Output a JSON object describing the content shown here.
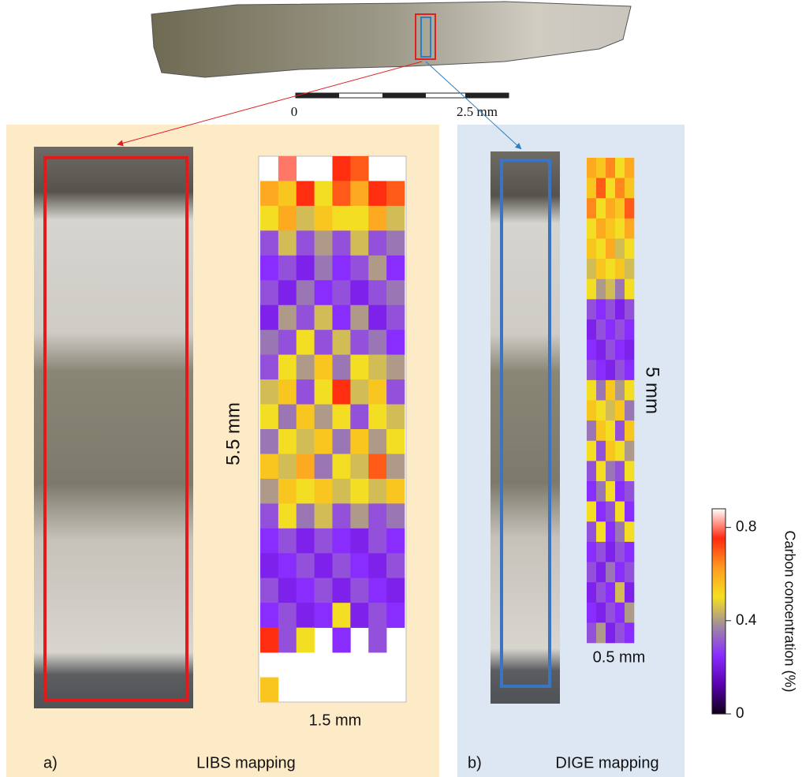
{
  "top_image": {
    "scale_start": "0",
    "scale_end": "2.5 mm"
  },
  "panel_a": {
    "label": "a)",
    "title": "LIBS mapping",
    "height_label": "5.5 mm",
    "width_label": "1.5 mm",
    "grid": [
      [
        null,
        0.8,
        null,
        null,
        0.75,
        0.7,
        null,
        null
      ],
      [
        0.6,
        0.55,
        0.75,
        0.5,
        0.7,
        0.6,
        0.75,
        0.7
      ],
      [
        0.5,
        0.6,
        0.45,
        0.55,
        0.5,
        0.5,
        0.6,
        0.45
      ],
      [
        0.3,
        0.45,
        0.3,
        0.4,
        0.3,
        0.45,
        0.3,
        0.35
      ],
      [
        0.25,
        0.3,
        0.22,
        0.35,
        0.25,
        0.3,
        0.4,
        0.25
      ],
      [
        0.3,
        0.22,
        0.35,
        0.25,
        0.3,
        0.22,
        0.3,
        0.35
      ],
      [
        0.22,
        0.4,
        0.3,
        0.45,
        0.25,
        0.4,
        0.22,
        0.3
      ],
      [
        0.35,
        0.3,
        0.5,
        0.3,
        0.45,
        0.3,
        0.35,
        0.25
      ],
      [
        0.3,
        0.5,
        0.4,
        0.55,
        0.35,
        0.5,
        0.45,
        0.4
      ],
      [
        0.45,
        0.55,
        0.3,
        0.5,
        0.75,
        0.45,
        0.55,
        0.3
      ],
      [
        0.5,
        0.35,
        0.55,
        0.4,
        0.5,
        0.3,
        0.5,
        0.45
      ],
      [
        0.35,
        0.5,
        0.45,
        0.55,
        0.35,
        0.55,
        0.4,
        0.5
      ],
      [
        0.55,
        0.45,
        0.6,
        0.35,
        0.5,
        0.45,
        0.7,
        0.4
      ],
      [
        0.4,
        0.55,
        0.5,
        0.55,
        0.45,
        0.5,
        0.45,
        0.55
      ],
      [
        0.3,
        0.5,
        0.35,
        0.45,
        0.3,
        0.4,
        0.3,
        0.35
      ],
      [
        0.25,
        0.3,
        0.22,
        0.3,
        0.25,
        0.22,
        0.3,
        0.25
      ],
      [
        0.22,
        0.25,
        0.3,
        0.22,
        0.3,
        0.25,
        0.22,
        0.3
      ],
      [
        0.3,
        0.22,
        0.25,
        0.3,
        0.22,
        0.3,
        0.25,
        0.22
      ],
      [
        0.25,
        0.3,
        0.22,
        0.25,
        0.5,
        0.22,
        0.3,
        0.25
      ],
      [
        0.75,
        0.3,
        0.5,
        null,
        0.25,
        null,
        0.3,
        null
      ],
      [
        null,
        null,
        null,
        null,
        null,
        null,
        null,
        null
      ],
      [
        0.55,
        null,
        null,
        null,
        null,
        null,
        null,
        null
      ]
    ]
  },
  "panel_b": {
    "label": "b)",
    "title": "DIGE mapping",
    "height_label": "5 mm",
    "width_label": "0.5 mm",
    "grid": [
      [
        0.6,
        0.55,
        0.65,
        0.5,
        0.6
      ],
      [
        0.55,
        0.7,
        0.5,
        0.65,
        0.55
      ],
      [
        0.65,
        0.5,
        0.6,
        0.55,
        0.7
      ],
      [
        0.5,
        0.6,
        0.55,
        0.5,
        0.6
      ],
      [
        0.55,
        0.5,
        0.6,
        0.45,
        0.5
      ],
      [
        0.45,
        0.55,
        0.5,
        0.55,
        0.45
      ],
      [
        0.5,
        0.4,
        0.45,
        0.35,
        0.5
      ],
      [
        0.3,
        0.25,
        0.3,
        0.22,
        0.3
      ],
      [
        0.22,
        0.3,
        0.25,
        0.3,
        0.25
      ],
      [
        0.25,
        0.22,
        0.3,
        0.25,
        0.22
      ],
      [
        0.3,
        0.25,
        0.22,
        0.3,
        0.25
      ],
      [
        0.5,
        0.35,
        0.55,
        0.4,
        0.5
      ],
      [
        0.55,
        0.5,
        0.45,
        0.55,
        0.35
      ],
      [
        0.35,
        0.55,
        0.5,
        0.3,
        0.55
      ],
      [
        0.5,
        0.3,
        0.55,
        0.5,
        0.4
      ],
      [
        0.3,
        0.5,
        0.35,
        0.3,
        0.5
      ],
      [
        0.25,
        0.35,
        0.5,
        0.25,
        0.3
      ],
      [
        0.5,
        0.25,
        0.3,
        0.5,
        0.25
      ],
      [
        0.3,
        0.5,
        0.25,
        0.35,
        0.5
      ],
      [
        0.25,
        0.3,
        0.22,
        0.3,
        0.25
      ],
      [
        0.3,
        0.22,
        0.35,
        0.25,
        0.3
      ],
      [
        0.22,
        0.3,
        0.25,
        0.45,
        0.22
      ],
      [
        0.25,
        0.22,
        0.3,
        0.25,
        0.4
      ],
      [
        0.3,
        0.4,
        0.22,
        0.3,
        0.25
      ]
    ]
  },
  "colorbar": {
    "title": "Carbon concentration (%)",
    "lim": [
      0,
      0.88
    ],
    "ticks": [
      0,
      0.4,
      0.8
    ],
    "colors": [
      "#0d0016",
      "#5a00b0",
      "#8a2cff",
      "#a08aa0",
      "#f5e020",
      "#ff9a20",
      "#ff2a10",
      "#ffffff"
    ]
  }
}
